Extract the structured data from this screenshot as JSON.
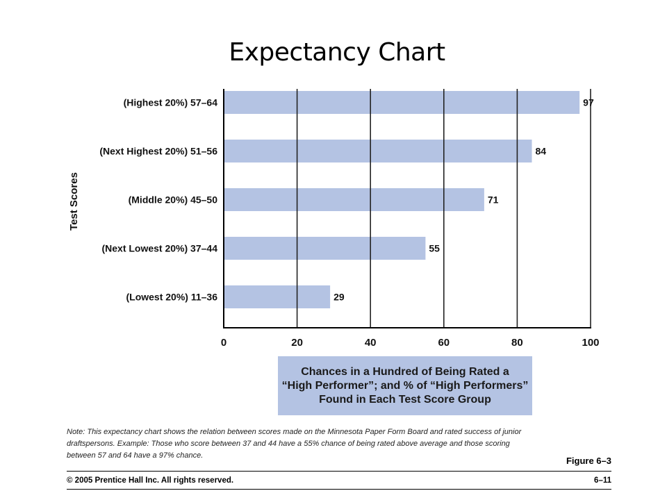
{
  "slide": {
    "title": "Expectancy Chart",
    "note": "Note: This expectancy chart shows the relation between scores made on the Minnesota Paper Form Board and rated success of junior draftspersons. Example: Those who score between 37 and 44 have a 55% chance of being rated above average and those scoring between 57 and 64 have a 97% chance.",
    "figure_label": "Figure 6–3",
    "copyright": "© 2005 Prentice Hall Inc. All rights reserved.",
    "page_number": "6–11"
  },
  "colors": {
    "bar": "#b4c3e3",
    "axis": "#000000",
    "grid": "#222222"
  },
  "chart_data": {
    "type": "bar",
    "orientation": "horizontal",
    "categories": [
      "(Highest 20%) 57–64",
      "(Next Highest 20%) 51–56",
      "(Middle 20%) 45–50",
      "(Next Lowest 20%) 37–44",
      "(Lowest 20%) 11–36"
    ],
    "values": [
      97,
      84,
      71,
      55,
      29
    ],
    "data_labels": [
      "97",
      "84",
      "71",
      "55",
      "29"
    ],
    "ylabel": "Test Scores",
    "xlabel": "Chances in a Hundred of Being Rated a\n“High Performer”; and % of “High Performers”\nFound in Each Test Score Group",
    "xlim": [
      0,
      100
    ],
    "x_ticks": [
      0,
      20,
      40,
      60,
      80,
      100
    ],
    "x_tick_labels": [
      "0",
      "20",
      "40",
      "60",
      "80",
      "100"
    ],
    "grid": true
  }
}
